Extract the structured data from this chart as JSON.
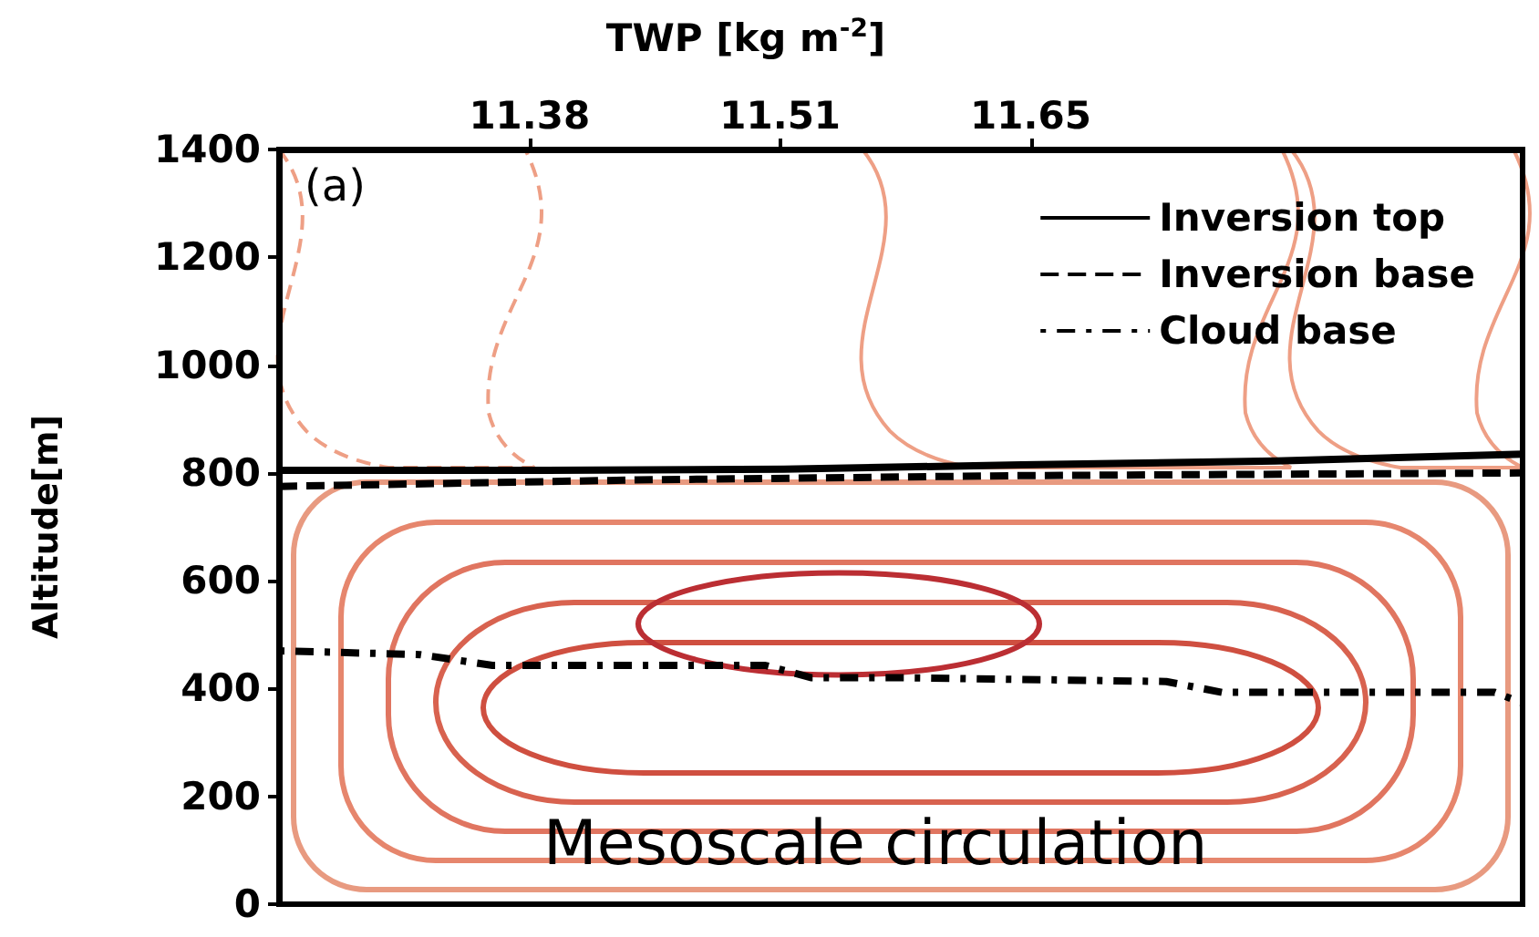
{
  "chart_data": {
    "type": "line",
    "xlabel": "TWP  [kg m$^{-2}$]",
    "ylabel": "Altitude[m]",
    "xlim": [
      11.245,
      11.915
    ],
    "xticks": [
      {
        "value": 11.38,
        "label": "11.38"
      },
      {
        "value": 11.515,
        "label": "11.51"
      },
      {
        "value": 11.65,
        "label": "11.65"
      }
    ],
    "ylim": [
      0,
      1400
    ],
    "yticks": [
      0,
      200,
      400,
      600,
      800,
      1000,
      1200,
      1400
    ],
    "legend": "top right",
    "grid": false,
    "annotations": [
      "(a)",
      "Mesoscale circulation"
    ],
    "series": [
      {
        "name": "Inversion top",
        "color": "#000000",
        "line_style": "solid",
        "x": [
          11.245,
          11.389,
          11.517,
          11.645,
          11.782,
          11.915
        ],
        "values": [
          805,
          805,
          807,
          815,
          822,
          835
        ]
      },
      {
        "name": "Inversion base",
        "color": "#000000",
        "line_style": "dashed",
        "x": [
          11.245,
          11.438,
          11.645,
          11.915
        ],
        "values": [
          775,
          787,
          795,
          800
        ]
      },
      {
        "name": "Cloud base",
        "color": "#000000",
        "line_style": "dotted",
        "x": [
          11.245,
          11.321,
          11.36,
          11.507,
          11.532,
          11.586,
          11.723,
          11.753,
          11.9,
          11.915
        ],
        "values": [
          470,
          463,
          443,
          443,
          420,
          420,
          413,
          393,
          393,
          373
        ]
      }
    ]
  }
}
